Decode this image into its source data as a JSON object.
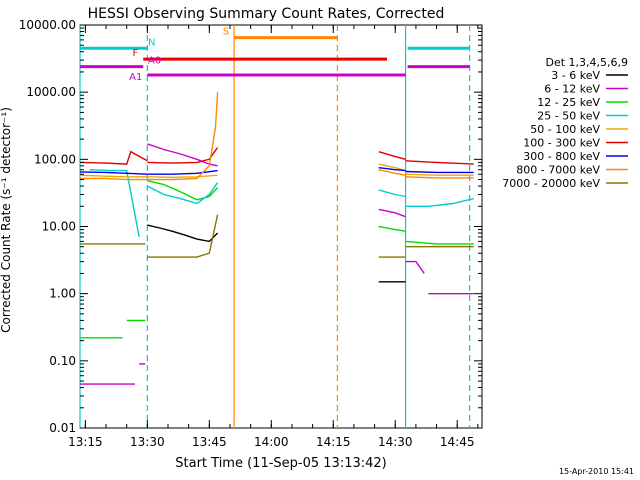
{
  "chart_data": {
    "type": "line",
    "title": "HESSI Observing Summary Count Rates, Corrected",
    "xlabel": "Start Time (11-Sep-05 13:13:42)",
    "ylabel": "Corrected Count Rate (s⁻¹ detector⁻¹)",
    "y_scale": "log",
    "xlim": [
      "13:13:42",
      "14:51:00"
    ],
    "ylim": [
      0.01,
      10000
    ],
    "x_ticks": [
      "13:15",
      "13:30",
      "13:45",
      "14:00",
      "14:15",
      "14:30",
      "14:45"
    ],
    "y_ticks": [
      "0.01",
      "0.10",
      "1.00",
      "10.00",
      "100.00",
      "1000.00",
      "10000.00"
    ],
    "legend": {
      "title": "Det 1,3,4,5,6,9",
      "position": "right",
      "entries": [
        "3 - 6 keV",
        "6 - 12 keV",
        "12 - 25 keV",
        "25 - 50 keV",
        "50 - 100 keV",
        "100 - 300 keV",
        "300 - 800 keV",
        "800 - 7000 keV",
        "7000 - 20000 keV"
      ]
    },
    "series": [
      {
        "name": "3 - 6 keV",
        "color": "#000000",
        "segments": [
          {
            "x": [
              "13:30:00",
              "13:33:00",
              "13:36:00",
              "13:39:00",
              "13:42:00",
              "13:45:00",
              "13:47:00"
            ],
            "y": [
              10.5,
              9.5,
              8.5,
              7.5,
              6.5,
              6,
              8
            ]
          },
          {
            "x": [
              "14:26:00",
              "14:30:00",
              "14:32:30"
            ],
            "y": [
              1.5,
              1.5,
              1.5
            ]
          }
        ]
      },
      {
        "name": "6 - 12 keV",
        "color": "#cc00cc",
        "segments": [
          {
            "x": [
              "13:13:42",
              "13:20:00",
              "13:27:00"
            ],
            "y": [
              0.045,
              0.045,
              0.045
            ]
          },
          {
            "x": [
              "13:28:00",
              "13:29:30"
            ],
            "y": [
              0.09,
              0.09
            ]
          },
          {
            "x": [
              "13:30:00",
              "13:34:00",
              "13:38:00",
              "13:42:00",
              "13:45:00",
              "13:47:00"
            ],
            "y": [
              170,
              140,
              120,
              100,
              85,
              80
            ]
          },
          {
            "x": [
              "14:26:00",
              "14:30:00",
              "14:32:30"
            ],
            "y": [
              18,
              16,
              14
            ]
          },
          {
            "x": [
              "14:32:30",
              "14:35:00",
              "14:37:00"
            ],
            "y": [
              3,
              3,
              2
            ]
          },
          {
            "x": [
              "14:38:00",
              "14:43:00",
              "14:49:00"
            ],
            "y": [
              1.0,
              1.0,
              1.0
            ]
          }
        ]
      },
      {
        "name": "12 - 25 keV",
        "color": "#00dd00",
        "segments": [
          {
            "x": [
              "13:13:42",
              "13:20:00",
              "13:24:00"
            ],
            "y": [
              0.22,
              0.22,
              0.22
            ]
          },
          {
            "x": [
              "13:25:00",
              "13:29:30"
            ],
            "y": [
              0.4,
              0.4
            ]
          },
          {
            "x": [
              "13:30:00",
              "13:34:00",
              "13:38:00",
              "13:42:00",
              "13:45:00",
              "13:47:00"
            ],
            "y": [
              48,
              42,
              33,
              25,
              28,
              38
            ]
          },
          {
            "x": [
              "14:26:00",
              "14:30:00",
              "14:32:30"
            ],
            "y": [
              10,
              9,
              8.5
            ]
          },
          {
            "x": [
              "14:32:30",
              "14:40:00",
              "14:49:00"
            ],
            "y": [
              6,
              5.5,
              5.5
            ]
          }
        ]
      },
      {
        "name": "25 - 50 keV",
        "color": "#00cccc",
        "segments": [
          {
            "x": [
              "13:16:00",
              "13:21:00",
              "13:25:00",
              "13:28:00"
            ],
            "y": [
              70,
              68,
              68,
              7
            ]
          },
          {
            "x": [
              "13:30:00",
              "13:34:00",
              "13:38:00",
              "13:42:00",
              "13:45:00",
              "13:47:00"
            ],
            "y": [
              40,
              30,
              26,
              22,
              30,
              45
            ]
          },
          {
            "x": [
              "14:26:00",
              "14:30:00",
              "14:32:30"
            ],
            "y": [
              35,
              30,
              28
            ]
          },
          {
            "x": [
              "14:32:30",
              "14:38:00",
              "14:44:00",
              "14:49:00"
            ],
            "y": [
              20,
              20,
              22,
              26
            ]
          }
        ]
      },
      {
        "name": "50 - 100 keV",
        "color": "#eeaa00",
        "segments": [
          {
            "x": [
              "13:13:42",
              "13:20:00",
              "13:25:00",
              "13:30:00"
            ],
            "y": [
              58,
              56,
              55,
              55
            ]
          },
          {
            "x": [
              "13:30:00",
              "13:36:00",
              "13:42:00",
              "13:47:00"
            ],
            "y": [
              55,
              54,
              55,
              58
            ]
          },
          {
            "x": [
              "14:26:00",
              "14:30:00",
              "14:32:30"
            ],
            "y": [
              85,
              75,
              68
            ]
          },
          {
            "x": [
              "14:32:30",
              "14:40:00",
              "14:49:00"
            ],
            "y": [
              60,
              58,
              58
            ]
          }
        ]
      },
      {
        "name": "100 - 300 keV",
        "color": "#dd0000",
        "segments": [
          {
            "x": [
              "13:13:42",
              "13:20:00",
              "13:25:00",
              "13:26:00",
              "13:30:00"
            ],
            "y": [
              90,
              88,
              85,
              130,
              95
            ]
          },
          {
            "x": [
              "13:30:00",
              "13:36:00",
              "13:42:00",
              "13:45:00",
              "13:47:00"
            ],
            "y": [
              90,
              88,
              90,
              100,
              150
            ]
          },
          {
            "x": [
              "14:26:00",
              "14:30:00",
              "14:32:30"
            ],
            "y": [
              130,
              110,
              100
            ]
          },
          {
            "x": [
              "14:32:30",
              "14:40:00",
              "14:49:00"
            ],
            "y": [
              95,
              90,
              85
            ]
          }
        ]
      },
      {
        "name": "300 - 800 keV",
        "color": "#0000ee",
        "segments": [
          {
            "x": [
              "13:13:42",
              "13:20:00",
              "13:25:00",
              "13:30:00"
            ],
            "y": [
              65,
              64,
              62,
              60
            ]
          },
          {
            "x": [
              "13:30:00",
              "13:36:00",
              "13:42:00",
              "13:47:00"
            ],
            "y": [
              60,
              60,
              62,
              68
            ]
          },
          {
            "x": [
              "14:26:00",
              "14:30:00",
              "14:32:30"
            ],
            "y": [
              75,
              70,
              68
            ]
          },
          {
            "x": [
              "14:32:30",
              "14:40:00",
              "14:49:00"
            ],
            "y": [
              66,
              64,
              64
            ]
          }
        ]
      },
      {
        "name": "800 - 7000 keV",
        "color": "#ff8800",
        "segments": [
          {
            "x": [
              "13:13:42",
              "13:20:00",
              "13:25:00",
              "13:30:00"
            ],
            "y": [
              52,
              52,
              50,
              50
            ]
          },
          {
            "x": [
              "13:30:00",
              "13:36:00",
              "13:42:00",
              "13:45:00",
              "13:46:30",
              "13:47:00"
            ],
            "y": [
              50,
              50,
              52,
              80,
              300,
              1000
            ]
          },
          {
            "x": [
              "14:26:00",
              "14:30:00",
              "14:32:30"
            ],
            "y": [
              70,
              62,
              58
            ]
          },
          {
            "x": [
              "14:32:30",
              "14:40:00",
              "14:49:00"
            ],
            "y": [
              55,
              53,
              53
            ]
          }
        ]
      },
      {
        "name": "7000 - 20000 keV",
        "color": "#887700",
        "segments": [
          {
            "x": [
              "13:13:42",
              "13:20:00",
              "13:25:00",
              "13:29:30"
            ],
            "y": [
              5.5,
              5.5,
              5.5,
              5.5
            ]
          },
          {
            "x": [
              "13:30:00",
              "13:36:00",
              "13:42:00",
              "13:45:00",
              "13:47:00"
            ],
            "y": [
              3.5,
              3.5,
              3.5,
              4,
              15
            ]
          },
          {
            "x": [
              "14:26:00",
              "14:30:00",
              "14:32:30"
            ],
            "y": [
              3.5,
              3.5,
              3.5
            ]
          },
          {
            "x": [
              "14:32:30",
              "14:40:00",
              "14:49:00"
            ],
            "y": [
              5,
              5,
              5
            ]
          }
        ]
      }
    ],
    "state_bars": [
      {
        "label": "N",
        "color": "#00cccc",
        "y": 4500,
        "ranges": [
          [
            "13:13:42",
            "13:30:00"
          ],
          [
            "14:33:00",
            "14:48:00"
          ]
        ]
      },
      {
        "label": "S",
        "color": "#ff8800",
        "y": 6500,
        "ranges": [
          [
            "13:51:00",
            "14:16:00"
          ]
        ]
      },
      {
        "label": "F",
        "color": "#ee0000",
        "y": 3100,
        "ranges": [
          [
            "13:29:00",
            "14:28:00"
          ]
        ]
      },
      {
        "label": "A0",
        "color": "#cc00cc",
        "y": 2400,
        "ranges": [
          [
            "13:13:42",
            "13:29:00"
          ],
          [
            "14:33:00",
            "14:48:00"
          ]
        ]
      },
      {
        "label": "A1",
        "color": "#cc00cc",
        "y": 1800,
        "ranges": [
          [
            "13:30:00",
            "14:32:30"
          ]
        ]
      }
    ],
    "vertical_lines": [
      {
        "x": "13:13:42",
        "color": "#00cccc",
        "style": "solid"
      },
      {
        "x": "13:30:00",
        "color": "#00cccc",
        "style": "dashed"
      },
      {
        "x": "13:51:00",
        "color": "#ff8800",
        "style": "solid"
      },
      {
        "x": "14:16:00",
        "color": "#ff8800",
        "style": "dashed"
      },
      {
        "x": "14:32:30",
        "color": "#00cccc",
        "style": "solid"
      },
      {
        "x": "14:48:00",
        "color": "#00cccc",
        "style": "dashed"
      }
    ],
    "timestamp": "15-Apr-2010 15:41"
  }
}
